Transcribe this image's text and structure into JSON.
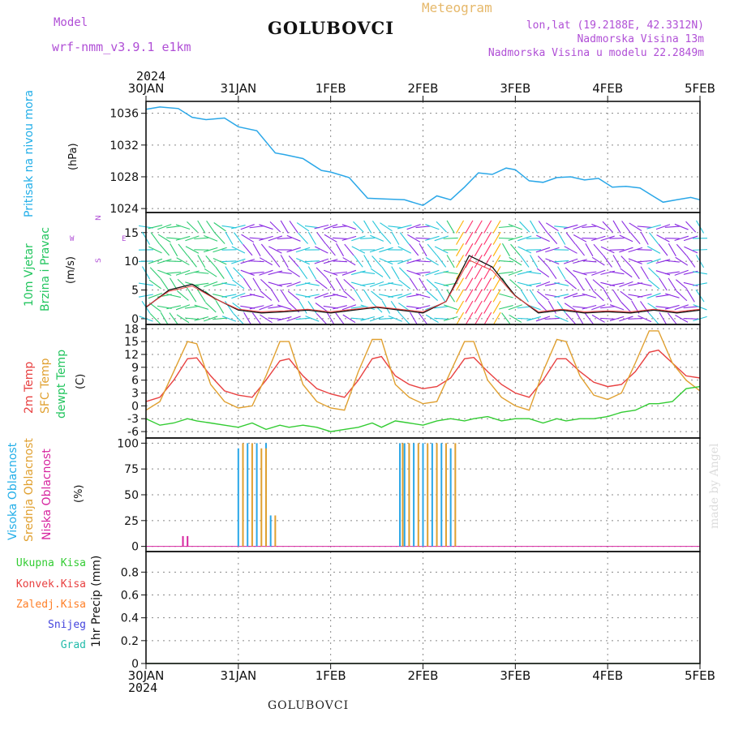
{
  "header": {
    "model_label": "Model",
    "model_name": "wrf-nmm_v3.9.1  e1km",
    "title": "GOLUBOVCI",
    "meteogram": "Meteogram",
    "lonlat": "lon,lat (19.2188E, 42.3312N)",
    "elevation": "Nadmorska Visina 13m",
    "model_elevation": "Nadmorska Visina u modelu 22.2849m",
    "footer": "GOLUBOVCI",
    "watermark": "made by Angel"
  },
  "time_axis": {
    "year_top": "2024",
    "year_bottom": "2024",
    "ticks": [
      "30JAN",
      "31JAN",
      "1FEB",
      "2FEB",
      "3FEB",
      "4FEB",
      "5FEB"
    ]
  },
  "panel_labels": {
    "pressure": [
      "Pritisak na nivou mora"
    ],
    "pressure_unit": "(hPa)",
    "wind": [
      "10m Vjetar",
      "Brzina i Pravac"
    ],
    "wind_unit": "(m/s)",
    "wind_compass": [
      "N",
      "W",
      "E",
      "S"
    ],
    "temp": [
      "2m Temp",
      "SFC Temp",
      "dewpt Temp"
    ],
    "temp_unit": "(C)",
    "cloud": [
      "Visoka Oblacnost",
      "Srednja Oblacnost",
      "Niska Oblacnost"
    ],
    "cloud_unit": "(%)",
    "precip_unit": "1hr Precip (mm)"
  },
  "precip_legend": [
    {
      "label": "Ukupna Kisa",
      "color": "#33cc33"
    },
    {
      "label": "Konvek.Kisa",
      "color": "#e83c3c"
    },
    {
      "label": "Zaledj.Kisa",
      "color": "#ff7f27"
    },
    {
      "label": "Snijeg",
      "color": "#4444dd"
    },
    {
      "label": "Grad",
      "color": "#22bbaa"
    }
  ],
  "colors": {
    "pressure": "#2aa7e8",
    "temp2m": "#e84040",
    "sfc": "#e0a030",
    "dewpt": "#33cc33",
    "cloud_high": "#2aa7e8",
    "cloud_mid": "#e0a030",
    "cloud_low": "#d6249f",
    "label_cyan": "#22aee8",
    "label_green": "#22c55e",
    "label_purple": "#b04fd6",
    "label_red": "#e84040",
    "label_orange": "#e0a030"
  },
  "chart_data": [
    {
      "type": "line",
      "name": "pressure",
      "ylabel": "(hPa)",
      "ylim": [
        1023.5,
        1037.5
      ],
      "yticks": [
        1024,
        1028,
        1032,
        1036
      ],
      "x": [
        0,
        0.15,
        0.35,
        0.5,
        0.65,
        0.85,
        1.0,
        1.2,
        1.4,
        1.5,
        1.7,
        1.9,
        2.0,
        2.2,
        2.4,
        2.6,
        2.8,
        3.0,
        3.15,
        3.3,
        3.45,
        3.6,
        3.75,
        3.9,
        4.0,
        4.15,
        4.3,
        4.45,
        4.6,
        4.75,
        4.9,
        5.05,
        5.2,
        5.35,
        5.5,
        5.6,
        5.75,
        5.9,
        6.0
      ],
      "values": [
        1036.5,
        1036.8,
        1036.6,
        1035.5,
        1035.2,
        1035.4,
        1034.3,
        1033.8,
        1031.0,
        1030.8,
        1030.3,
        1028.8,
        1028.6,
        1027.9,
        1025.3,
        1025.2,
        1025.1,
        1024.4,
        1025.6,
        1025.1,
        1026.7,
        1028.5,
        1028.3,
        1029.1,
        1028.9,
        1027.5,
        1027.3,
        1027.9,
        1028.0,
        1027.6,
        1027.8,
        1026.7,
        1026.8,
        1026.6,
        1025.5,
        1024.8,
        1025.1,
        1025.4,
        1025.1
      ]
    },
    {
      "type": "line",
      "name": "wind",
      "ylabel": "(m/s)",
      "ylim": [
        -1,
        18.5
      ],
      "yticks": [
        0,
        5,
        10,
        15
      ],
      "x": [
        0,
        0.25,
        0.5,
        0.75,
        1.0,
        1.25,
        1.5,
        1.75,
        2.0,
        2.25,
        2.5,
        2.75,
        3.0,
        3.25,
        3.5,
        3.75,
        4.0,
        4.25,
        4.5,
        4.75,
        5.0,
        5.25,
        5.5,
        5.75,
        6.0
      ],
      "values": [
        2.0,
        5.0,
        6.0,
        3.5,
        1.5,
        1.0,
        1.2,
        1.5,
        1.0,
        1.5,
        2.0,
        1.5,
        1.0,
        3.0,
        11.0,
        9.0,
        4.0,
        1.0,
        1.5,
        1.0,
        1.2,
        1.0,
        1.5,
        1.0,
        1.5
      ]
    },
    {
      "type": "line",
      "name": "temperature",
      "ylabel": "(C)",
      "ylim": [
        -7.5,
        19
      ],
      "yticks": [
        -6,
        -3,
        0,
        3,
        6,
        9,
        12,
        15,
        18
      ],
      "x": [
        0,
        0.15,
        0.3,
        0.45,
        0.55,
        0.7,
        0.85,
        1.0,
        1.15,
        1.3,
        1.45,
        1.55,
        1.7,
        1.85,
        2.0,
        2.15,
        2.3,
        2.45,
        2.55,
        2.7,
        2.85,
        3.0,
        3.15,
        3.3,
        3.45,
        3.55,
        3.7,
        3.85,
        4.0,
        4.15,
        4.3,
        4.45,
        4.55,
        4.7,
        4.85,
        5.0,
        5.15,
        5.3,
        5.45,
        5.55,
        5.7,
        5.85,
        6.0
      ],
      "series": [
        {
          "name": "2m Temp",
          "values": [
            1.0,
            2.0,
            6.0,
            11.0,
            11.2,
            7.0,
            3.5,
            2.5,
            2.0,
            6.0,
            10.5,
            11.0,
            7.0,
            4.0,
            2.8,
            2.0,
            6.0,
            11.0,
            11.5,
            7.0,
            5.0,
            4.0,
            4.5,
            6.5,
            11.0,
            11.3,
            8.0,
            5.0,
            3.0,
            2.0,
            6.0,
            11.0,
            11.0,
            8.0,
            5.5,
            4.5,
            5.0,
            8.0,
            12.5,
            13.0,
            10.0,
            7.0,
            6.5
          ]
        },
        {
          "name": "SFC Temp",
          "values": [
            -1.0,
            1.0,
            8.0,
            15.0,
            14.5,
            5.0,
            1.0,
            -0.5,
            0.0,
            7.0,
            15.0,
            15.0,
            5.0,
            1.0,
            -0.5,
            -1.0,
            8.0,
            15.5,
            15.5,
            5.0,
            2.0,
            0.5,
            1.0,
            8.0,
            15.0,
            15.0,
            6.0,
            2.0,
            0.0,
            -1.0,
            8.0,
            15.5,
            15.0,
            7.0,
            2.5,
            1.5,
            3.0,
            10.0,
            17.5,
            17.5,
            10.0,
            6.0,
            3.5
          ]
        },
        {
          "name": "dewpt Temp",
          "values": [
            -3.0,
            -4.5,
            -4.0,
            -3.0,
            -3.5,
            -4.0,
            -4.5,
            -5.0,
            -4.0,
            -5.5,
            -4.5,
            -5.0,
            -4.5,
            -5.0,
            -6.0,
            -5.5,
            -5.0,
            -4.0,
            -5.0,
            -3.5,
            -4.0,
            -4.5,
            -3.5,
            -3.0,
            -3.5,
            -3.0,
            -2.5,
            -3.5,
            -3.0,
            -3.0,
            -4.0,
            -3.0,
            -3.5,
            -3.0,
            -3.0,
            -2.5,
            -1.5,
            -1.0,
            0.5,
            0.5,
            1.0,
            4.0,
            4.5
          ]
        }
      ]
    },
    {
      "type": "bar",
      "name": "cloud_cover",
      "ylabel": "(%)",
      "ylim": [
        -5,
        105
      ],
      "yticks": [
        0,
        25,
        50,
        75,
        100
      ],
      "series": [
        {
          "name": "Visoka Oblacnost",
          "x": [
            1.0,
            1.1,
            1.2,
            1.3,
            1.35,
            2.75,
            2.8,
            2.9,
            3.0,
            3.1,
            3.2,
            3.3
          ],
          "values": [
            95,
            100,
            100,
            100,
            30,
            100,
            100,
            100,
            100,
            100,
            100,
            95
          ]
        },
        {
          "name": "Srednja Oblacnost",
          "x": [
            1.05,
            1.15,
            1.25,
            1.3,
            1.4,
            2.78,
            2.85,
            2.95,
            3.05,
            3.15,
            3.25,
            3.35
          ],
          "values": [
            100,
            100,
            95,
            95,
            30,
            100,
            100,
            100,
            100,
            100,
            100,
            100
          ]
        },
        {
          "name": "Niska Oblacnost",
          "x": [
            0.4,
            0.45
          ],
          "values": [
            10,
            10
          ]
        }
      ]
    },
    {
      "type": "line",
      "name": "precipitation",
      "ylabel": "1hr Precip (mm)",
      "ylim": [
        0,
        0.98
      ],
      "yticks": [
        0,
        0.2,
        0.4,
        0.6,
        0.8
      ],
      "series": [
        {
          "name": "Ukupna Kisa",
          "values": [
            0,
            0,
            0,
            0,
            0,
            0,
            0
          ]
        }
      ],
      "x": [
        0,
        1,
        2,
        3,
        4,
        5,
        6
      ]
    }
  ]
}
